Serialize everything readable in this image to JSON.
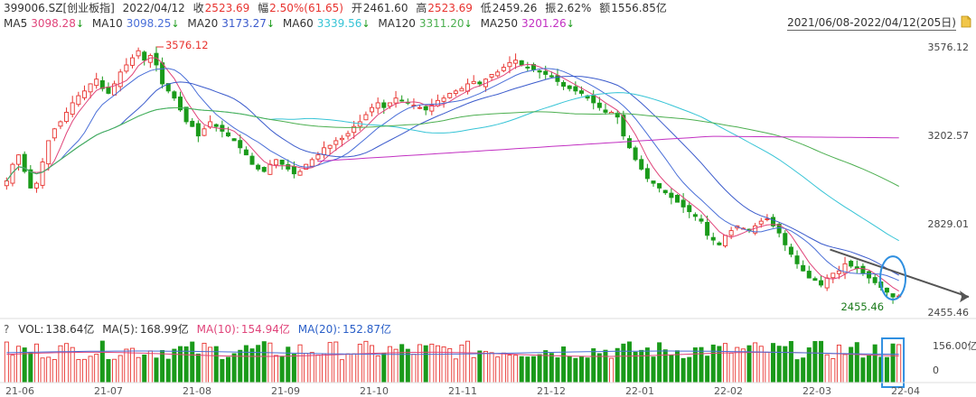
{
  "header": {
    "code": "399006.SZ[创业板指]",
    "date": "2022/04/12",
    "close_label": "收",
    "close": "2523.69",
    "change_label": "幅",
    "change": "2.50%(61.65)",
    "open_label": "开",
    "open": "2461.60",
    "high_label": "高",
    "high": "2523.69",
    "low_label": "低",
    "low": "2459.26",
    "amp_label": "振",
    "amp": "2.62%",
    "amount_label": "额",
    "amount": "1556.85亿"
  },
  "ma_line": [
    {
      "label": "MA5",
      "value": "3098.28",
      "arrow": "↓",
      "color": "#e0447a"
    },
    {
      "label": "MA10",
      "value": "3098.25",
      "arrow": "↓",
      "color": "#4a6fd8"
    },
    {
      "label": "MA20",
      "value": "3173.27",
      "arrow": "↓",
      "color": "#3b5bcc"
    },
    {
      "label": "MA60",
      "value": "3339.56",
      "arrow": "↓",
      "color": "#36c4d6"
    },
    {
      "label": "MA120",
      "value": "3311.20",
      "arrow": "↓",
      "color": "#4caf50"
    },
    {
      "label": "MA250",
      "value": "3201.26",
      "arrow": "↓",
      "color": "#c230c2"
    }
  ],
  "date_range": "2021/06/08-2022/04/12(205日)",
  "volume_line": {
    "help": "?",
    "vol_label": "VOL:",
    "vol_value": "138.64亿",
    "ma5_label": "MA(5):",
    "ma5_value": "168.99亿",
    "ma10_label": "MA(10):",
    "ma10_value": "154.94亿",
    "ma20_label": "MA(20):",
    "ma20_value": "152.87亿"
  },
  "colors": {
    "up": "#e8332f",
    "down": "#1a9a1a",
    "ma5": "#e0447a",
    "ma10": "#4a6fd8",
    "ma20": "#3b5bcc",
    "ma60": "#36c4d6",
    "ma120": "#4caf50",
    "ma250": "#c230c2",
    "trendline": "#555555",
    "highlight": "#2f8fe0"
  },
  "chart_data": {
    "type": "candlestick",
    "y_ticks": [
      "3576.12",
      "3202.57",
      "2829.01",
      "2455.46"
    ],
    "ylim": [
      2455.46,
      3576.12
    ],
    "x_labels": [
      "21-06",
      "21-07",
      "21-08",
      "21-09",
      "21-10",
      "21-11",
      "21-12",
      "22-01",
      "22-02",
      "22-03",
      "22-04"
    ],
    "annotations": {
      "high": "3576.12",
      "low": "2455.46"
    },
    "volume_ticks": [
      "156.00亿",
      "0"
    ],
    "close_series": [
      3010,
      3080,
      3120,
      3050,
      2980,
      3000,
      3090,
      3180,
      3230,
      3260,
      3300,
      3340,
      3370,
      3390,
      3420,
      3440,
      3400,
      3380,
      3420,
      3470,
      3500,
      3530,
      3560,
      3520,
      3540,
      3500,
      3420,
      3390,
      3360,
      3310,
      3260,
      3240,
      3200,
      3230,
      3260,
      3240,
      3220,
      3200,
      3180,
      3150,
      3120,
      3080,
      3060,
      3050,
      3080,
      3100,
      3080,
      3060,
      3040,
      3050,
      3080,
      3100,
      3120,
      3150,
      3160,
      3180,
      3190,
      3210,
      3240,
      3260,
      3290,
      3320,
      3340,
      3320,
      3340,
      3360,
      3350,
      3340,
      3330,
      3320,
      3310,
      3330,
      3350,
      3360,
      3380,
      3390,
      3400,
      3420,
      3430,
      3420,
      3440,
      3460,
      3470,
      3490,
      3510,
      3520,
      3500,
      3490,
      3480,
      3470,
      3460,
      3450,
      3430,
      3410,
      3400,
      3390,
      3380,
      3360,
      3340,
      3320,
      3300,
      3300,
      3280,
      3200,
      3150,
      3100,
      3060,
      3020,
      3000,
      2980,
      2960,
      2940,
      2920,
      2900,
      2880,
      2860,
      2840,
      2780,
      2760,
      2740,
      2780,
      2800,
      2820,
      2810,
      2800,
      2820,
      2840,
      2850,
      2820,
      2790,
      2740,
      2700,
      2660,
      2630,
      2600,
      2590,
      2570,
      2600,
      2620,
      2630,
      2660,
      2650,
      2640,
      2620,
      2600,
      2580,
      2560,
      2540,
      2520,
      2524
    ]
  }
}
